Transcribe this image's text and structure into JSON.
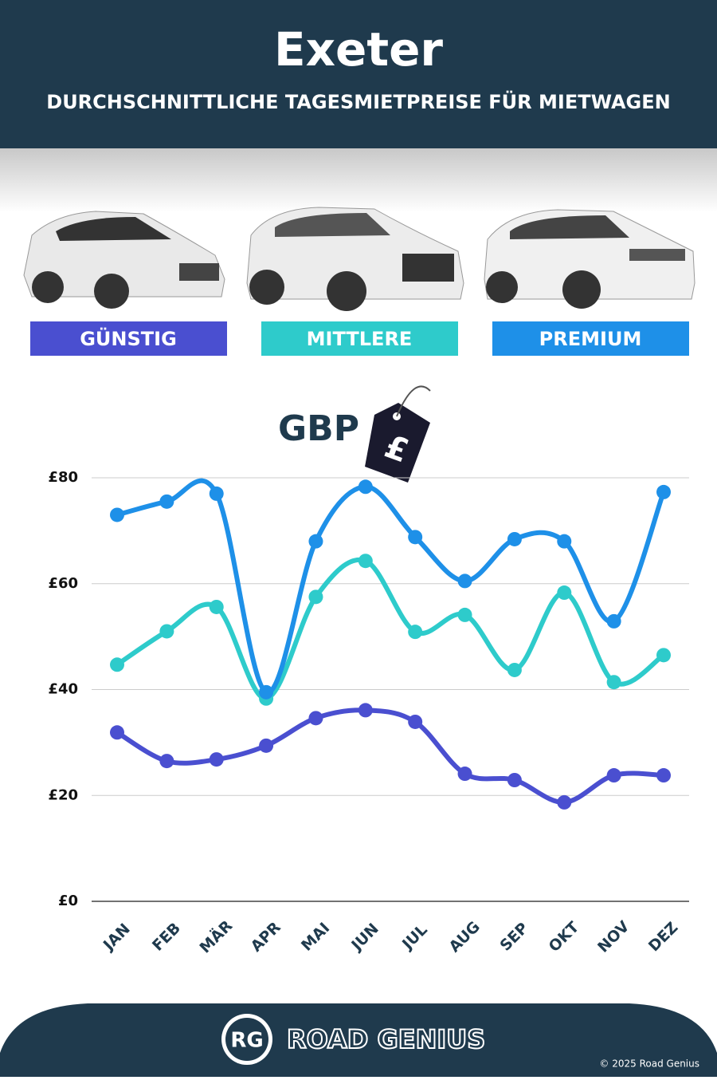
{
  "chart_data": {
    "type": "line",
    "title": "Exeter",
    "subtitle": "DURCHSCHNITTLICHE TAGESMIETPREISE FÜR MIETWAGEN",
    "unit_label": "GBP",
    "categories": [
      "JAN",
      "FEB",
      "MÄR",
      "APR",
      "MAI",
      "JUN",
      "JUL",
      "AUG",
      "SEP",
      "OKT",
      "NOV",
      "DEZ"
    ],
    "series": [
      {
        "name": "GÜNSTIG",
        "color": "#4a4fd0",
        "values": [
          31.9,
          26.5,
          26.8,
          29.4,
          34.6,
          36.1,
          33.9,
          24.1,
          22.9,
          18.7,
          23.8,
          23.8
        ]
      },
      {
        "name": "MITTLERE",
        "color": "#2ecbcb",
        "values": [
          44.7,
          51,
          55.6,
          38.3,
          57.5,
          64.3,
          50.9,
          54.1,
          43.7,
          58.3,
          41.4,
          46.5
        ]
      },
      {
        "name": "PREMIUM",
        "color": "#1e90e8",
        "values": [
          73,
          75.5,
          77,
          39.5,
          68,
          78.3,
          68.8,
          60.5,
          68.4,
          68,
          52.9,
          77.3
        ]
      }
    ],
    "ylim": [
      0,
      80
    ],
    "yticks": [
      {
        "value": 0,
        "label": "£0"
      },
      {
        "value": 20,
        "label": "£20"
      },
      {
        "value": 40,
        "label": "£40"
      },
      {
        "value": 60,
        "label": "£60"
      },
      {
        "value": 80,
        "label": "£80"
      }
    ],
    "grid": true
  },
  "footer": {
    "logo": "RG",
    "brand": "ROAD GENIUS",
    "copyright": "© 2025 Road Genius"
  }
}
